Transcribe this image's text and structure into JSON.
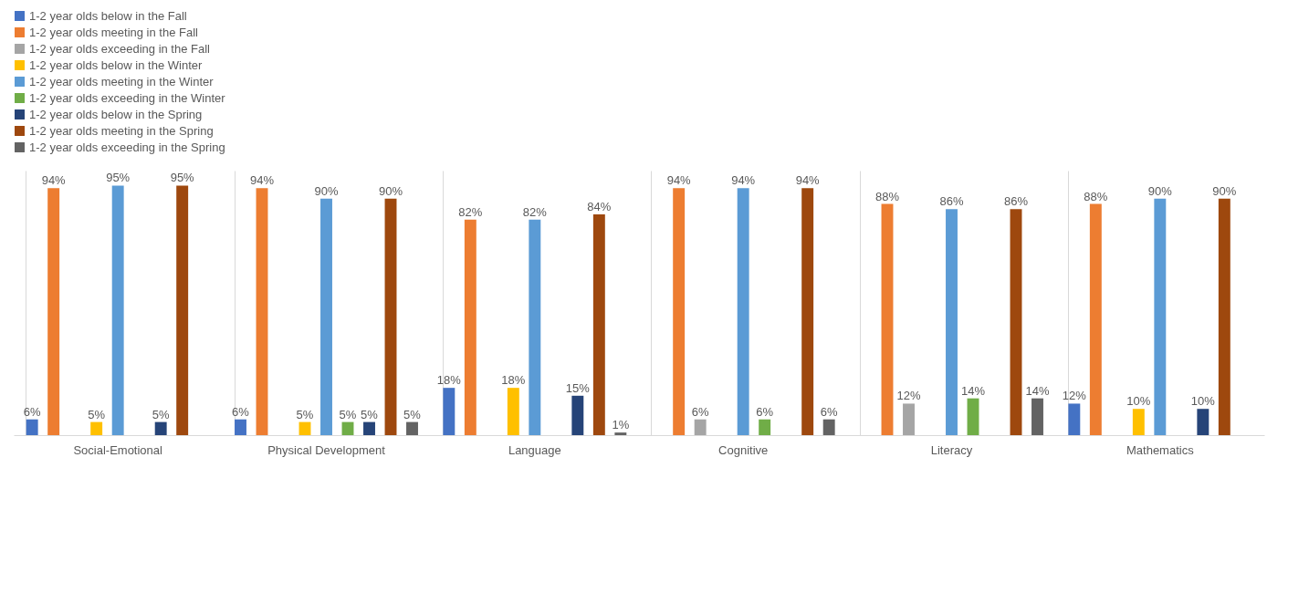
{
  "chart_data": {
    "type": "bar",
    "categories": [
      "Social-Emotional",
      "Physical Development",
      "Language",
      "Cognitive",
      "Literacy",
      "Mathematics"
    ],
    "series": [
      {
        "name": "1-2 year olds below in the Fall",
        "color": "#4472c4",
        "values": [
          6,
          6,
          18,
          null,
          null,
          12
        ],
        "value_labels": [
          "6%",
          "6%",
          "18%",
          null,
          null,
          "12%"
        ]
      },
      {
        "name": "1-2 year olds meeting in the Fall",
        "color": "#ed7d31",
        "values": [
          94,
          94,
          82,
          94,
          88,
          88
        ],
        "value_labels": [
          "94%",
          "94%",
          "82%",
          "94%",
          "88%",
          "88%"
        ]
      },
      {
        "name": "1-2 year olds exceeding in the Fall",
        "color": "#a5a5a5",
        "values": [
          null,
          null,
          null,
          6,
          12,
          null
        ],
        "value_labels": [
          null,
          null,
          null,
          "6%",
          "12%",
          null
        ]
      },
      {
        "name": "1-2 year olds below in the Winter",
        "color": "#ffc000",
        "values": [
          5,
          5,
          18,
          null,
          null,
          10
        ],
        "value_labels": [
          "5%",
          "5%",
          "18%",
          null,
          null,
          "10%"
        ]
      },
      {
        "name": "1-2 year olds meeting in the Winter",
        "color": "#5b9bd5",
        "values": [
          95,
          90,
          82,
          94,
          86,
          90
        ],
        "value_labels": [
          "95%",
          "90%",
          "82%",
          "94%",
          "86%",
          "90%"
        ]
      },
      {
        "name": "1-2 year olds exceeding in the Winter",
        "color": "#70ad47",
        "values": [
          null,
          5,
          null,
          6,
          14,
          null
        ],
        "value_labels": [
          null,
          "5%",
          null,
          "6%",
          "14%",
          null
        ]
      },
      {
        "name": "1-2 year olds below in the Spring",
        "color": "#264478",
        "values": [
          5,
          5,
          15,
          null,
          null,
          10
        ],
        "value_labels": [
          "5%",
          "5%",
          "15%",
          null,
          null,
          "10%"
        ]
      },
      {
        "name": "1-2 year olds meeting in the Spring",
        "color": "#9e480e",
        "values": [
          95,
          90,
          84,
          94,
          86,
          90
        ],
        "value_labels": [
          "95%",
          "90%",
          "84%",
          "94%",
          "86%",
          "90%"
        ]
      },
      {
        "name": "1-2 year olds exceeding in the Spring",
        "color": "#636363",
        "values": [
          null,
          5,
          1,
          6,
          14,
          null
        ],
        "value_labels": [
          null,
          "5%",
          "1%",
          "6%",
          "14%",
          null
        ]
      }
    ],
    "legend": "top",
    "grid": "x",
    "tick_labels": "x"
  }
}
